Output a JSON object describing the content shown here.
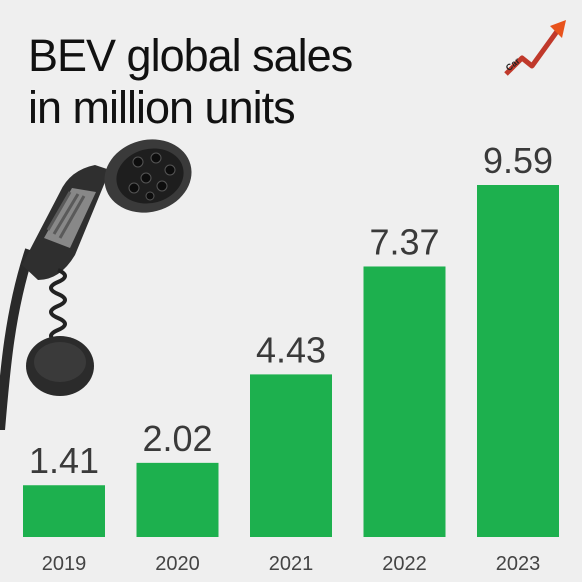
{
  "title": {
    "line1": "BEV global sales",
    "line2": "in million units"
  },
  "logo": {
    "text": "Car Industry Analysis",
    "icon": "car-industry-analysis-logo"
  },
  "illustration": {
    "icon": "ev-charging-plug-icon"
  },
  "colors": {
    "bar": "#1db04e",
    "background": "#efefef",
    "label": "#3a3a3a"
  },
  "chart_data": {
    "type": "bar",
    "title": "BEV global sales in million units",
    "categories": [
      "2019",
      "2020",
      "2021",
      "2022",
      "2023"
    ],
    "values": [
      1.41,
      2.02,
      4.43,
      7.37,
      9.59
    ],
    "data_labels": [
      "1.41",
      "2.02",
      "4.43",
      "7.37",
      "9.59"
    ],
    "xlabel": "",
    "ylabel": "",
    "ylim": [
      0,
      9.59
    ],
    "grid": false,
    "legend": "none"
  }
}
